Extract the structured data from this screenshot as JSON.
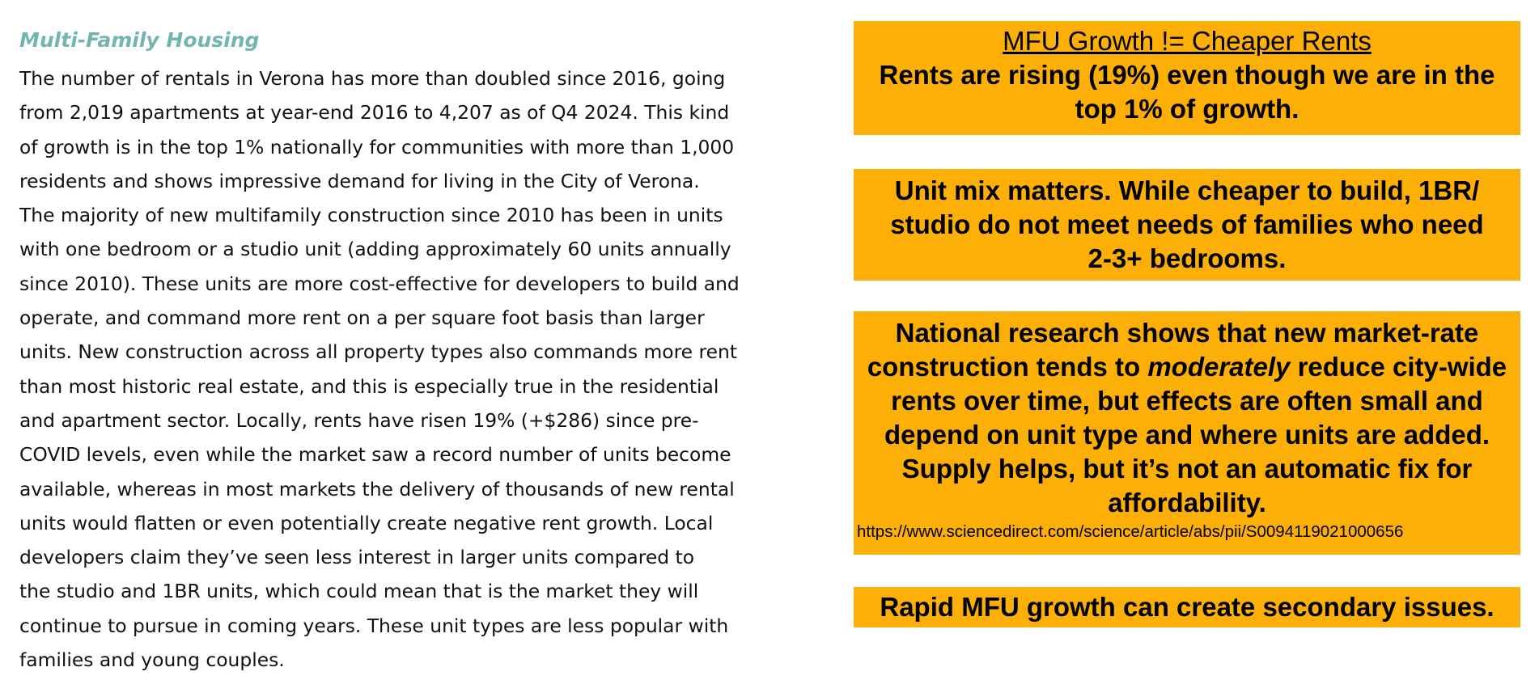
{
  "left_section": {
    "heading": "Multi-Family Housing",
    "lines": [
      "The number of rentals in Verona has more than doubled since 2016, going",
      "from 2,019 apartments at year-end 2016 to 4,207 as of Q4 2024. This kind",
      "of growth is in the top 1% nationally for communities with more than 1,000",
      "residents and shows impressive demand for living in the City of Verona.",
      "The majority of new multifamily construction since 2010 has been in units",
      "with one bedroom or a studio unit (adding approximately 60 units annually",
      "since 2010). These units are more cost-effective for developers to build and",
      "operate, and command more rent on a per square foot basis than larger",
      "units. New construction across all property types also commands more rent",
      "than most historic real estate, and this is especially true in the residential",
      "and apartment sector. Locally, rents have risen 19% (+$286) since pre-",
      "COVID levels, even while the market saw a record number of units become",
      "available, whereas in most markets the delivery of thousands of new rental",
      "units would flatten or even potentially create negative rent growth. Local",
      "developers claim they’ve seen less interest in larger units compared to",
      "the studio and 1BR units, which could mean that is the market they will",
      "continue to pursue in coming years. These unit types are less popular with",
      "families and young couples."
    ]
  },
  "callouts": {
    "growth": {
      "title": "MFU Growth != Cheaper Rents",
      "lines": [
        "Rents are rising (19%) even though we are in the",
        "top 1% of growth."
      ]
    },
    "unit_mix": {
      "lines": [
        "Unit mix matters. While cheaper to build, 1BR/",
        "studio do not meet needs of families who need",
        "2-3+ bedrooms."
      ]
    },
    "research": {
      "line1": "National research shows that new market-rate",
      "line2_pre": "construction tends to ",
      "line2_em": "moderately",
      "line2_post": " reduce city-wide",
      "line3": "rents over time, but effects are often small and",
      "line4": "depend on unit type and where units are added.",
      "line5": "Supply helps, but it’s not an automatic fix for",
      "line6": "affordability.",
      "source": "https://www.sciencedirect.com/science/article/abs/pii/S0094119021000656"
    },
    "secondary": {
      "text": "Rapid MFU growth can create secondary issues."
    }
  },
  "colors": {
    "heading_teal": "#72b5b0",
    "callout_orange": "#fcaf06",
    "body_text": "#111111"
  }
}
